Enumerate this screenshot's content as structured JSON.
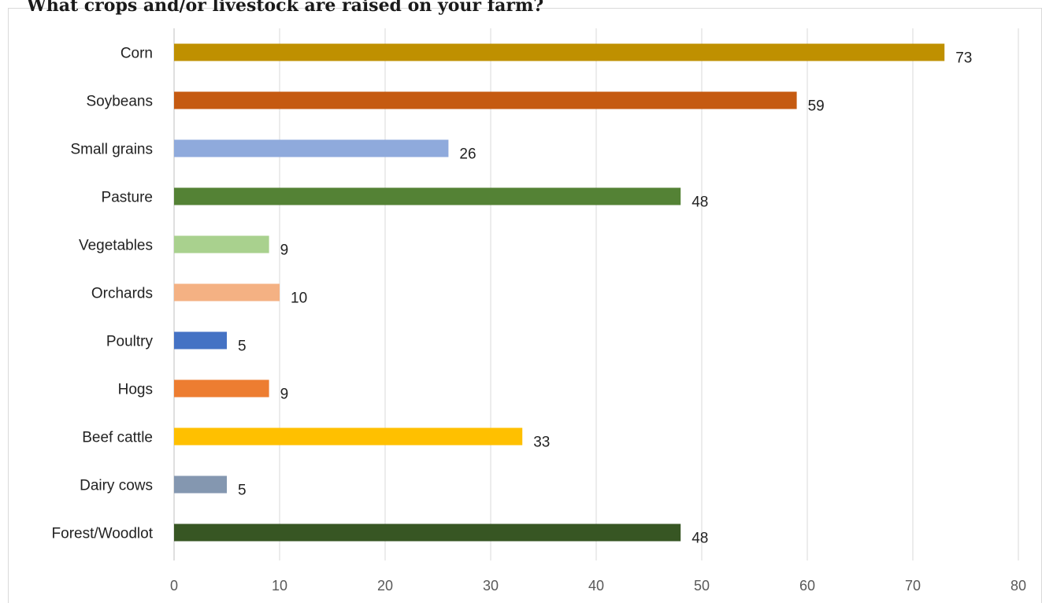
{
  "chart_data": {
    "type": "bar",
    "orientation": "horizontal",
    "title": "What crops and/or livestock are raised on your farm?",
    "categories": [
      "Corn",
      "Soybeans",
      "Small grains",
      "Pasture",
      "Vegetables",
      "Orchards",
      "Poultry",
      "Hogs",
      "Beef cattle",
      "Dairy cows",
      "Forest/Woodlot"
    ],
    "values": [
      73,
      59,
      26,
      48,
      9,
      10,
      5,
      9,
      33,
      5,
      48
    ],
    "colors": [
      "#bf9000",
      "#c55a11",
      "#8faadc",
      "#548235",
      "#a9d18e",
      "#f4b183",
      "#4472c4",
      "#ed7d31",
      "#ffc000",
      "#8497b0",
      "#375623"
    ],
    "xlim": [
      0,
      80
    ],
    "xticks": [
      "0",
      "10",
      "20",
      "30",
      "40",
      "50",
      "60",
      "70",
      "80"
    ],
    "data_labels": true,
    "grid": "vertical",
    "legend": "none"
  }
}
